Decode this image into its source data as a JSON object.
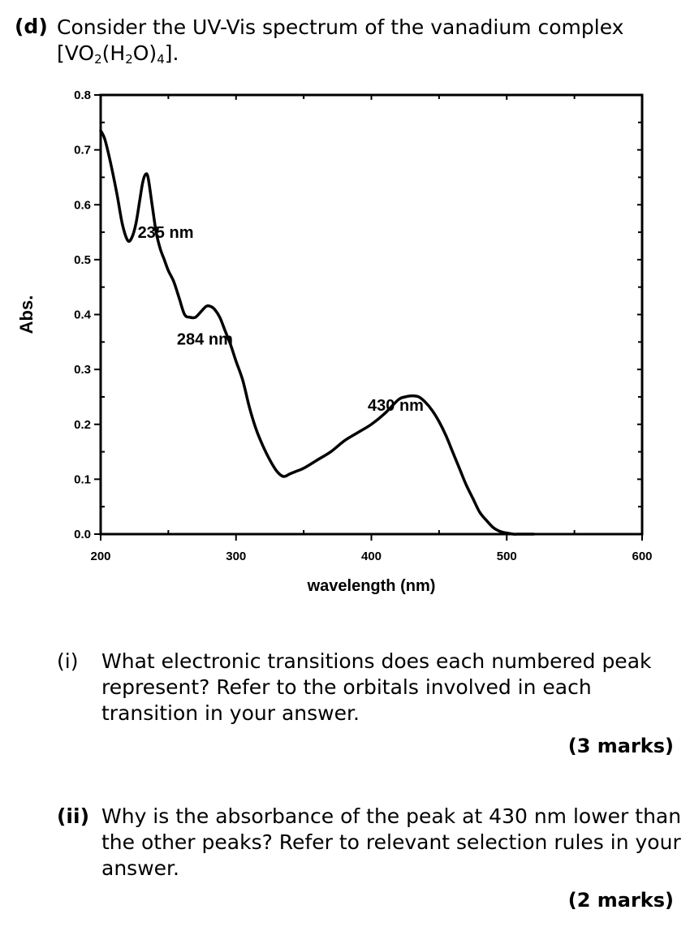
{
  "question": {
    "label": "(d)",
    "text": "Consider the UV-Vis spectrum of the vanadium complex",
    "formula_parts": {
      "a": "[VO",
      "s1": "2",
      "b": "(H",
      "s2": "2",
      "c": "O)",
      "s3": "4",
      "d": "]."
    }
  },
  "chart_data": {
    "type": "line",
    "xlabel": "wavelength (nm)",
    "ylabel": "Abs.",
    "xlim": [
      200,
      600
    ],
    "ylim": [
      0.0,
      0.8
    ],
    "xticks": [
      200,
      300,
      400,
      500,
      600
    ],
    "yticks": [
      0.0,
      0.1,
      0.2,
      0.3,
      0.4,
      0.5,
      0.6,
      0.7,
      0.8
    ],
    "grid": false,
    "series": [
      {
        "x": [
          200,
          203,
          207,
          212,
          216,
          220,
          223,
          226,
          229,
          231,
          233,
          235,
          238,
          241,
          244,
          247,
          250,
          254,
          258,
          262,
          266,
          270,
          274,
          278,
          281,
          284,
          288,
          292,
          296,
          300,
          305,
          310,
          315,
          320,
          325,
          330,
          335,
          340,
          345,
          350,
          360,
          370,
          380,
          390,
          400,
          410,
          420,
          425,
          430,
          435,
          440,
          445,
          450,
          455,
          460,
          465,
          470,
          475,
          480,
          485,
          490,
          495,
          500,
          505,
          510,
          520
        ],
        "y": [
          0.735,
          0.72,
          0.68,
          0.62,
          0.565,
          0.535,
          0.54,
          0.565,
          0.61,
          0.64,
          0.655,
          0.65,
          0.6,
          0.55,
          0.52,
          0.5,
          0.48,
          0.46,
          0.43,
          0.4,
          0.395,
          0.395,
          0.405,
          0.415,
          0.415,
          0.41,
          0.395,
          0.37,
          0.345,
          0.315,
          0.28,
          0.23,
          0.19,
          0.16,
          0.135,
          0.115,
          0.105,
          0.11,
          0.115,
          0.12,
          0.135,
          0.15,
          0.17,
          0.185,
          0.2,
          0.22,
          0.245,
          0.25,
          0.252,
          0.25,
          0.24,
          0.225,
          0.205,
          0.18,
          0.15,
          0.12,
          0.09,
          0.065,
          0.04,
          0.025,
          0.012,
          0.005,
          0.002,
          0.0,
          0.0,
          0.0
        ]
      }
    ],
    "annotations": [
      {
        "text": "235 nm",
        "x": 248,
        "y": 0.54
      },
      {
        "text": "284 nm",
        "x": 277,
        "y": 0.345
      },
      {
        "text": "430 nm",
        "x": 418,
        "y": 0.225
      }
    ]
  },
  "sub_questions": [
    {
      "num": "(i)",
      "text": "What electronic transitions does each numbered peak represent? Refer to the orbitals involved in each transition in your answer.",
      "marks": "(3 marks)"
    },
    {
      "num": "(ii)",
      "text": "Why is the absorbance of the peak at 430 nm lower than the other peaks? Refer to relevant selection rules in your answer.",
      "marks": "(2 marks)"
    }
  ]
}
